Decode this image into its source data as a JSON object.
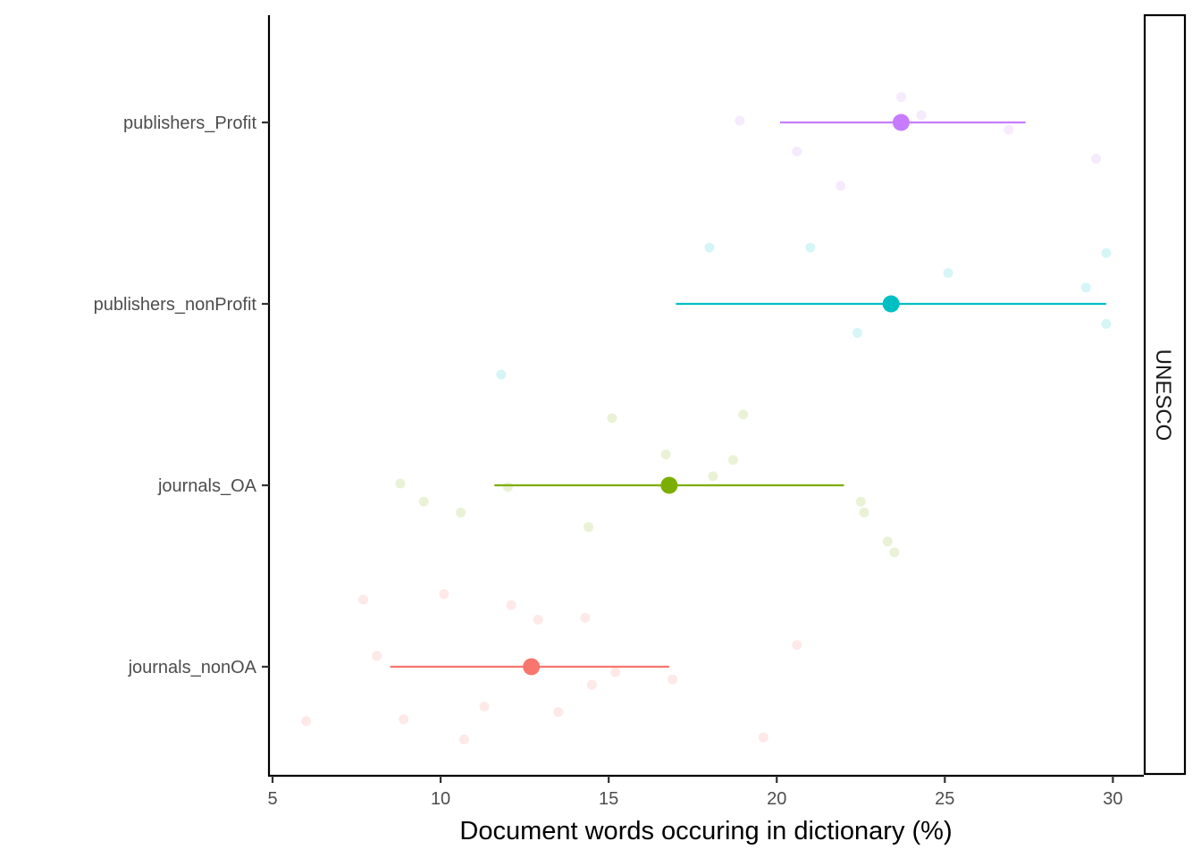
{
  "chart_data": {
    "type": "scatter",
    "title": "",
    "xlabel": "Document words occuring in dictionary (%)",
    "ylabel": "",
    "xlim": [
      5,
      31
    ],
    "x_ticks": [
      5,
      10,
      15,
      20,
      25,
      30
    ],
    "categories": [
      "journals_nonOA",
      "journals_OA",
      "publishers_nonProfit",
      "publishers_Profit"
    ],
    "facet_label": "UNESCO",
    "grid": false,
    "legend": "none",
    "series": [
      {
        "category": "journals_nonOA",
        "color": "#F8766D",
        "mean": 12.7,
        "lower": 8.5,
        "upper": 16.8,
        "jitter_points": [
          {
            "x": 7.7,
            "dy": 0.37
          },
          {
            "x": 10.1,
            "dy": 0.4
          },
          {
            "x": 12.1,
            "dy": 0.34
          },
          {
            "x": 12.9,
            "dy": 0.26
          },
          {
            "x": 14.3,
            "dy": 0.27
          },
          {
            "x": 20.6,
            "dy": 0.12
          },
          {
            "x": 8.1,
            "dy": 0.06
          },
          {
            "x": 15.2,
            "dy": -0.03
          },
          {
            "x": 16.9,
            "dy": -0.07
          },
          {
            "x": 14.5,
            "dy": -0.1
          },
          {
            "x": 11.3,
            "dy": -0.22
          },
          {
            "x": 13.5,
            "dy": -0.25
          },
          {
            "x": 6.0,
            "dy": -0.3
          },
          {
            "x": 8.9,
            "dy": -0.29
          },
          {
            "x": 10.7,
            "dy": -0.4
          },
          {
            "x": 19.6,
            "dy": -0.39
          }
        ]
      },
      {
        "category": "journals_OA",
        "color": "#7CAE00",
        "mean": 16.8,
        "lower": 11.6,
        "upper": 22.0,
        "jitter_points": [
          {
            "x": 15.1,
            "dy": 0.37
          },
          {
            "x": 19.0,
            "dy": 0.39
          },
          {
            "x": 16.7,
            "dy": 0.17
          },
          {
            "x": 18.7,
            "dy": 0.14
          },
          {
            "x": 18.1,
            "dy": 0.05
          },
          {
            "x": 8.8,
            "dy": 0.01
          },
          {
            "x": 12.0,
            "dy": -0.01
          },
          {
            "x": 9.5,
            "dy": -0.09
          },
          {
            "x": 10.6,
            "dy": -0.15
          },
          {
            "x": 22.5,
            "dy": -0.09
          },
          {
            "x": 22.6,
            "dy": -0.15
          },
          {
            "x": 14.4,
            "dy": -0.23
          },
          {
            "x": 23.3,
            "dy": -0.31
          },
          {
            "x": 23.5,
            "dy": -0.37
          }
        ]
      },
      {
        "category": "publishers_nonProfit",
        "color": "#00BFC4",
        "mean": 23.4,
        "lower": 17.0,
        "upper": 29.8,
        "jitter_points": [
          {
            "x": 18.0,
            "dy": 0.31
          },
          {
            "x": 21.0,
            "dy": 0.31
          },
          {
            "x": 29.8,
            "dy": 0.28
          },
          {
            "x": 25.1,
            "dy": 0.17
          },
          {
            "x": 29.2,
            "dy": 0.09
          },
          {
            "x": 29.8,
            "dy": -0.11
          },
          {
            "x": 22.4,
            "dy": -0.16
          },
          {
            "x": 11.8,
            "dy": -0.39
          }
        ]
      },
      {
        "category": "publishers_Profit",
        "color": "#C77CFF",
        "mean": 23.7,
        "lower": 20.1,
        "upper": 27.4,
        "jitter_points": [
          {
            "x": 23.7,
            "dy": 0.14
          },
          {
            "x": 24.3,
            "dy": 0.04
          },
          {
            "x": 18.9,
            "dy": 0.01
          },
          {
            "x": 26.9,
            "dy": -0.04
          },
          {
            "x": 20.6,
            "dy": -0.16
          },
          {
            "x": 29.5,
            "dy": -0.2
          },
          {
            "x": 21.9,
            "dy": -0.35
          }
        ]
      }
    ]
  }
}
